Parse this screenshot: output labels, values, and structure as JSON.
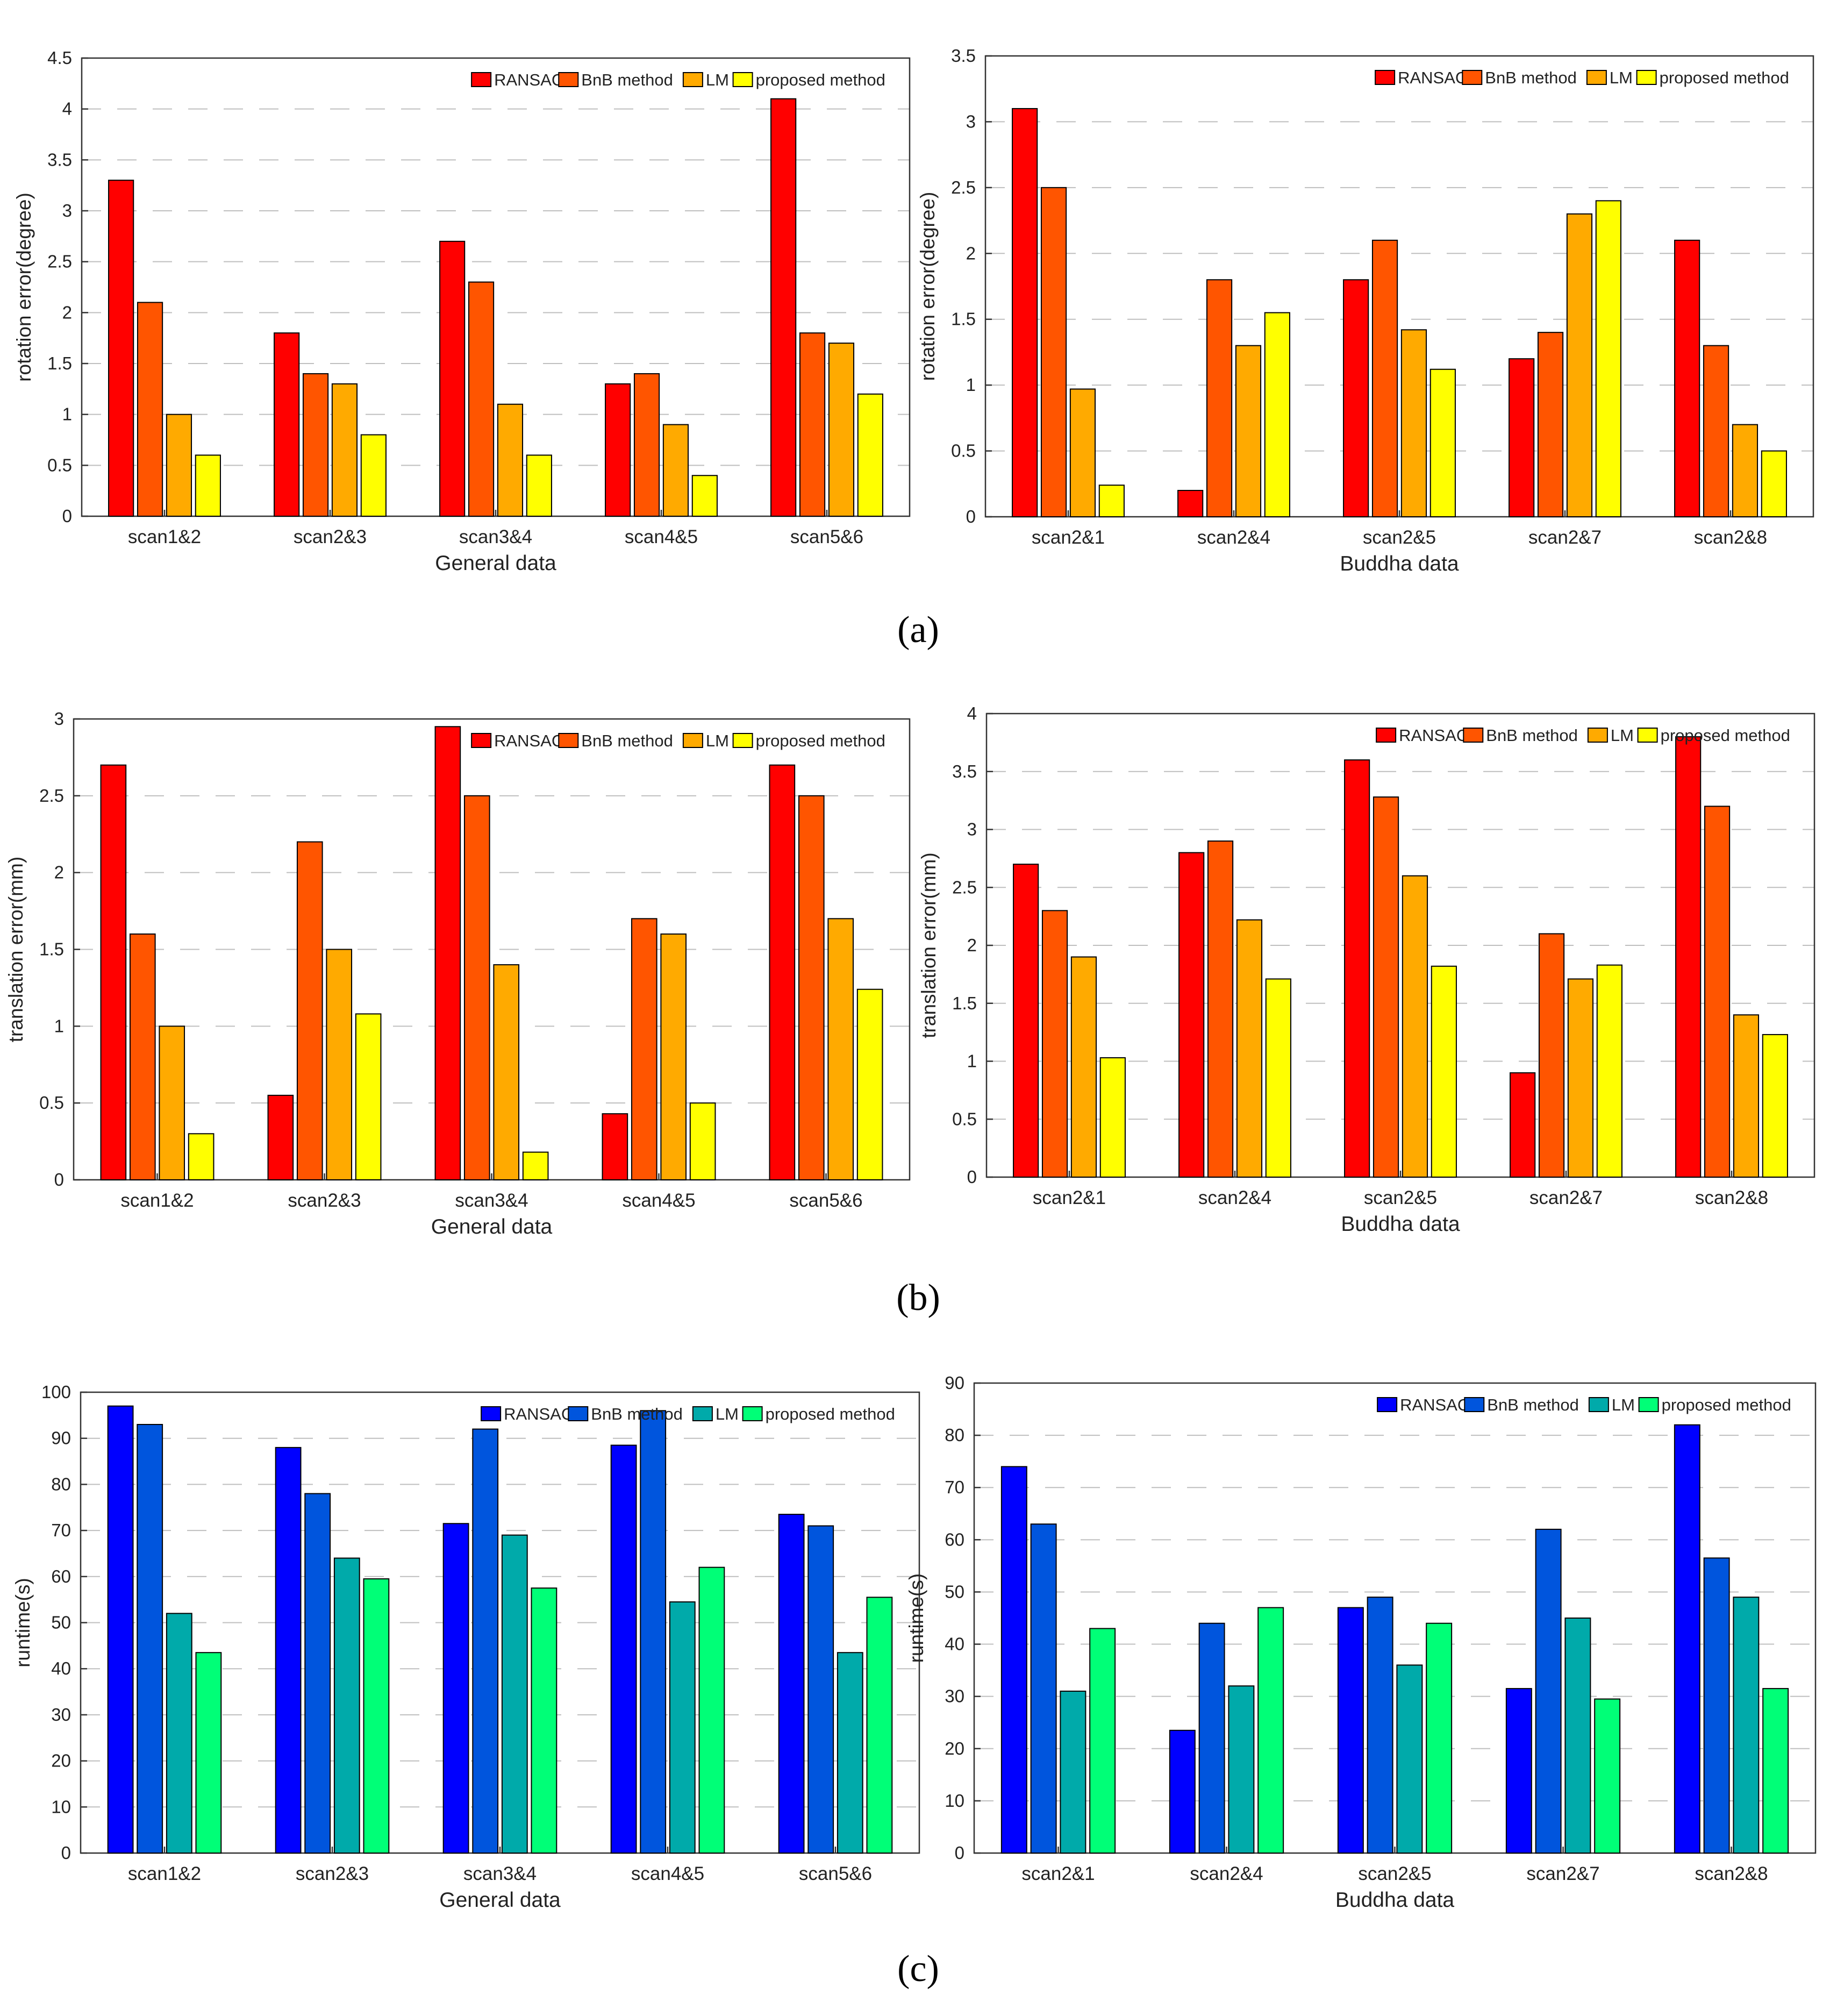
{
  "panel_labels": [
    "(a)",
    "(b)",
    "(c)"
  ],
  "legend_labels": [
    "RANSAC",
    "BnB method",
    "LM",
    "proposed method"
  ],
  "colors": {
    "warm": [
      "#ff0000",
      "#ff5500",
      "#ffaa00",
      "#ffff00"
    ],
    "cool": [
      "#0000ff",
      "#0055dd",
      "#00aaaa",
      "#00ff77"
    ],
    "axis": "#333333",
    "grid": "#bfbfbf"
  },
  "chart_data": [
    {
      "type": "bar",
      "panel": "(a)",
      "title": "",
      "xlabel": "General data",
      "ylabel": "rotation error(degree)",
      "categories": [
        "scan1&2",
        "scan2&3",
        "scan3&4",
        "scan4&5",
        "scan5&6"
      ],
      "ylim": [
        0,
        4.5
      ],
      "yticks": [
        0,
        0.5,
        1,
        1.5,
        2,
        2.5,
        3,
        3.5,
        4,
        4.5
      ],
      "ytick_labels": [
        "0",
        "0.5",
        "1",
        "1.5",
        "2",
        "2.5",
        "3",
        "3.5",
        "4",
        "4.5"
      ],
      "palette": "warm",
      "legend": "top-right",
      "series": [
        {
          "name": "RANSAC",
          "values": [
            3.3,
            1.8,
            2.7,
            1.3,
            4.1
          ]
        },
        {
          "name": "BnB method",
          "values": [
            2.1,
            1.4,
            2.3,
            1.4,
            1.8
          ]
        },
        {
          "name": "LM",
          "values": [
            1.0,
            1.3,
            1.1,
            0.9,
            1.7
          ]
        },
        {
          "name": "proposed method",
          "values": [
            0.6,
            0.8,
            0.6,
            0.4,
            1.2
          ]
        }
      ]
    },
    {
      "type": "bar",
      "panel": "(a)",
      "title": "",
      "xlabel": "Buddha data",
      "ylabel": "rotation error(degree)",
      "categories": [
        "scan2&1",
        "scan2&4",
        "scan2&5",
        "scan2&7",
        "scan2&8"
      ],
      "ylim": [
        0,
        3.5
      ],
      "yticks": [
        0,
        0.5,
        1,
        1.5,
        2,
        2.5,
        3,
        3.5
      ],
      "ytick_labels": [
        "0",
        "0.5",
        "1",
        "1.5",
        "2",
        "2.5",
        "3",
        "3.5"
      ],
      "palette": "warm",
      "legend": "top-right",
      "series": [
        {
          "name": "RANSAC",
          "values": [
            3.1,
            0.2,
            1.8,
            1.2,
            2.1
          ]
        },
        {
          "name": "BnB method",
          "values": [
            2.5,
            1.8,
            2.1,
            1.4,
            1.3
          ]
        },
        {
          "name": "LM",
          "values": [
            0.97,
            1.3,
            1.42,
            2.3,
            0.7
          ]
        },
        {
          "name": "proposed method",
          "values": [
            0.24,
            1.55,
            1.12,
            2.4,
            0.5
          ]
        }
      ]
    },
    {
      "type": "bar",
      "panel": "(b)",
      "title": "",
      "xlabel": "General data",
      "ylabel": "translation error(mm)",
      "categories": [
        "scan1&2",
        "scan2&3",
        "scan3&4",
        "scan4&5",
        "scan5&6"
      ],
      "ylim": [
        0,
        3
      ],
      "yticks": [
        0,
        0.5,
        1,
        1.5,
        2,
        2.5,
        3
      ],
      "ytick_labels": [
        "0",
        "0.5",
        "1",
        "1.5",
        "2",
        "2.5",
        "3"
      ],
      "palette": "warm",
      "legend": "top-right",
      "series": [
        {
          "name": "RANSAC",
          "values": [
            2.7,
            0.55,
            2.95,
            0.43,
            2.7
          ]
        },
        {
          "name": "BnB method",
          "values": [
            1.6,
            2.2,
            2.5,
            1.7,
            2.5
          ]
        },
        {
          "name": "LM",
          "values": [
            1.0,
            1.5,
            1.4,
            1.6,
            1.7
          ]
        },
        {
          "name": "proposed method",
          "values": [
            0.3,
            1.08,
            0.18,
            0.5,
            1.24
          ]
        }
      ]
    },
    {
      "type": "bar",
      "panel": "(b)",
      "title": "",
      "xlabel": "Buddha data",
      "ylabel": "translation error(mm)",
      "categories": [
        "scan2&1",
        "scan2&4",
        "scan2&5",
        "scan2&7",
        "scan2&8"
      ],
      "ylim": [
        0,
        4
      ],
      "yticks": [
        0,
        0.5,
        1,
        1.5,
        2,
        2.5,
        3,
        3.5,
        4
      ],
      "ytick_labels": [
        "0",
        "0.5",
        "1",
        "1.5",
        "2",
        "2.5",
        "3",
        "3.5",
        "4"
      ],
      "palette": "warm",
      "legend": "top-right",
      "series": [
        {
          "name": "RANSAC",
          "values": [
            2.7,
            2.8,
            3.6,
            0.9,
            3.8
          ]
        },
        {
          "name": "BnB method",
          "values": [
            2.3,
            2.9,
            3.28,
            2.1,
            3.2
          ]
        },
        {
          "name": "LM",
          "values": [
            1.9,
            2.22,
            2.6,
            1.71,
            1.4
          ]
        },
        {
          "name": "proposed method",
          "values": [
            1.03,
            1.71,
            1.82,
            1.83,
            1.23
          ]
        }
      ]
    },
    {
      "type": "bar",
      "panel": "(c)",
      "title": "",
      "xlabel": "General data",
      "ylabel": "runtime(s)",
      "categories": [
        "scan1&2",
        "scan2&3",
        "scan3&4",
        "scan4&5",
        "scan5&6"
      ],
      "ylim": [
        0,
        100
      ],
      "yticks": [
        0,
        10,
        20,
        30,
        40,
        50,
        60,
        70,
        80,
        90,
        100
      ],
      "ytick_labels": [
        "0",
        "10",
        "20",
        "30",
        "40",
        "50",
        "60",
        "70",
        "80",
        "90",
        "100"
      ],
      "palette": "cool",
      "legend": "top-right",
      "series": [
        {
          "name": "RANSAC",
          "values": [
            97,
            88,
            71.5,
            88.5,
            73.5
          ]
        },
        {
          "name": "BnB method",
          "values": [
            93,
            78,
            92,
            96,
            71
          ]
        },
        {
          "name": "LM",
          "values": [
            52,
            64,
            69,
            54.5,
            43.5
          ]
        },
        {
          "name": "proposed method",
          "values": [
            43.5,
            59.5,
            57.5,
            62,
            55.5
          ]
        }
      ]
    },
    {
      "type": "bar",
      "panel": "(c)",
      "title": "",
      "xlabel": "Buddha data",
      "ylabel": "runtime(s)",
      "categories": [
        "scan2&1",
        "scan2&4",
        "scan2&5",
        "scan2&7",
        "scan2&8"
      ],
      "ylim": [
        0,
        90
      ],
      "yticks": [
        0,
        10,
        20,
        30,
        40,
        50,
        60,
        70,
        80,
        90
      ],
      "ytick_labels": [
        "0",
        "10",
        "20",
        "30",
        "40",
        "50",
        "60",
        "70",
        "80",
        "90"
      ],
      "palette": "cool",
      "legend": "top-right",
      "series": [
        {
          "name": "RANSAC",
          "values": [
            74,
            23.5,
            47,
            31.5,
            82
          ]
        },
        {
          "name": "BnB method",
          "values": [
            63,
            44,
            49,
            62,
            56.5
          ]
        },
        {
          "name": "LM",
          "values": [
            31,
            32,
            36,
            45,
            49
          ]
        },
        {
          "name": "proposed method",
          "values": [
            43,
            47,
            44,
            29.5,
            31.5
          ]
        }
      ]
    }
  ]
}
